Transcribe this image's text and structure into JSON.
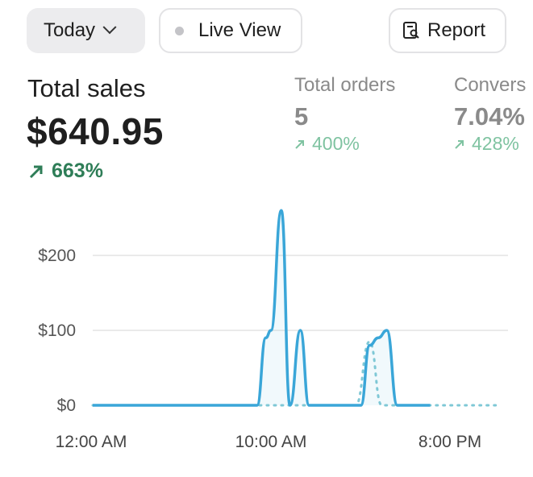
{
  "toolbar": {
    "today_label": "Today",
    "live_label": "Live View",
    "report_label": "Report"
  },
  "summary": {
    "title": "Total sales",
    "value": "$640.95",
    "delta": "663%",
    "metrics": [
      {
        "label": "Total orders",
        "value": "5",
        "delta": "400%"
      },
      {
        "label": "Convers",
        "value": "7.04%",
        "delta": "428%"
      }
    ]
  },
  "colors": {
    "line": "#3aa6d8",
    "compare": "#7fc8d6",
    "positive": "#2e7d57",
    "positive_light": "#7fc3a1"
  },
  "chart_data": {
    "type": "line",
    "ylim": [
      0,
      200
    ],
    "y_ticks": [
      "$200",
      "$100",
      "$0"
    ],
    "x_ticks": [
      "12:00 AM",
      "10:00 AM",
      "8:00 PM"
    ],
    "series": [
      {
        "style": "solid",
        "points": [
          [
            0,
            0
          ],
          [
            9.5,
            0
          ],
          [
            10,
            90
          ],
          [
            10.3,
            100
          ],
          [
            10.9,
            260
          ],
          [
            11.4,
            0
          ],
          [
            12,
            100
          ],
          [
            12.5,
            0
          ],
          [
            15.5,
            0
          ],
          [
            16,
            80
          ],
          [
            16.5,
            90
          ],
          [
            17,
            100
          ],
          [
            17.6,
            0
          ],
          [
            19.5,
            0
          ]
        ]
      },
      {
        "style": "dotted",
        "points": [
          [
            0,
            0
          ],
          [
            15.2,
            0
          ],
          [
            16,
            85
          ],
          [
            16.7,
            0
          ],
          [
            23.5,
            0
          ]
        ]
      }
    ]
  }
}
